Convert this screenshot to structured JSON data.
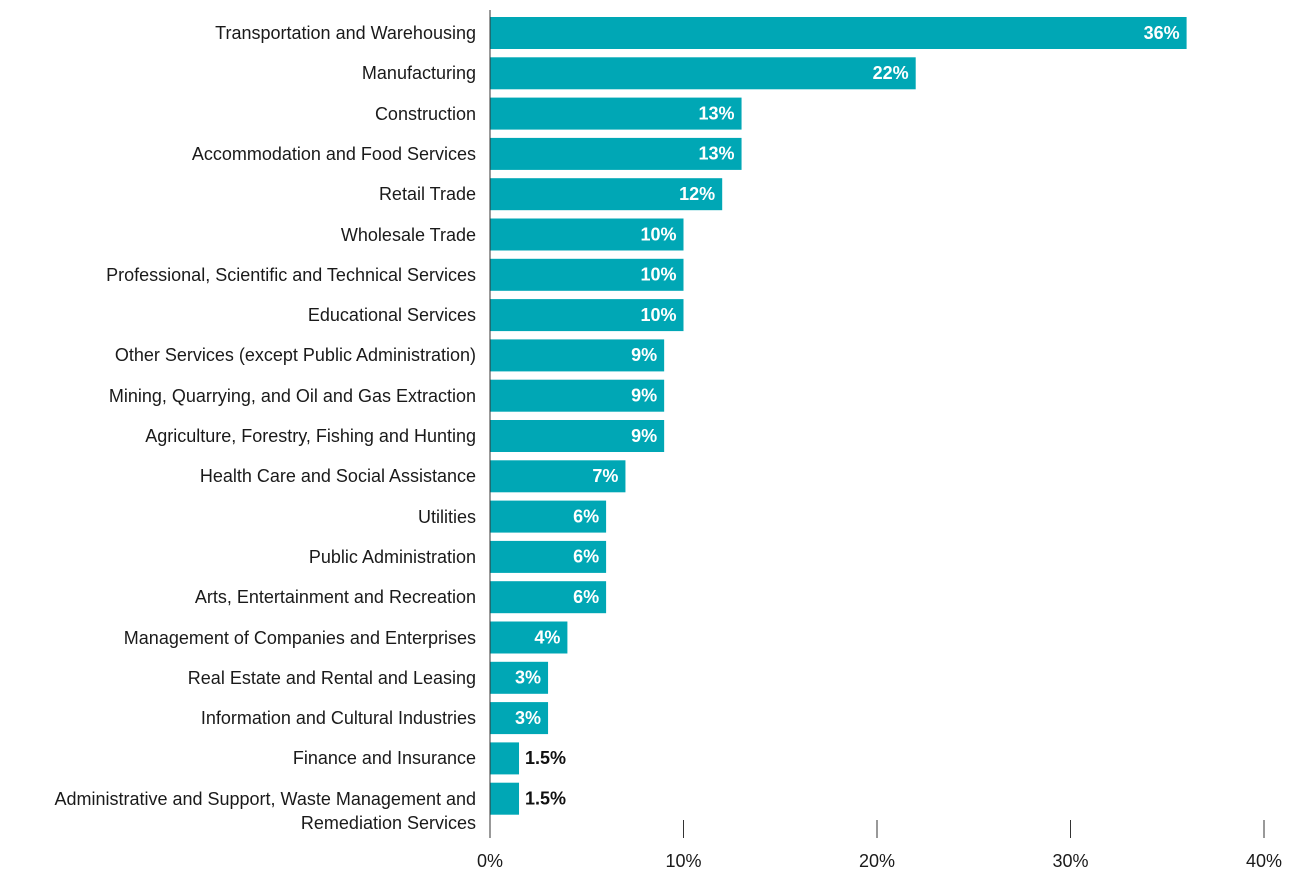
{
  "chart_data": {
    "type": "bar",
    "orientation": "horizontal",
    "categories": [
      "Transportation and Warehousing",
      "Manufacturing",
      "Construction",
      "Accommodation and Food Services",
      "Retail Trade",
      "Wholesale Trade",
      "Professional, Scientific and Technical Services",
      "Educational Services",
      "Other Services (except Public Administration)",
      "Mining, Quarrying, and Oil and Gas Extraction",
      "Agriculture, Forestry, Fishing and Hunting",
      "Health Care and Social Assistance",
      "Utilities",
      "Public Administration",
      "Arts, Entertainment and Recreation",
      "Management of Companies and Enterprises",
      "Real Estate and Rental and Leasing",
      "Information and Cultural Industries",
      "Finance and Insurance",
      "Administrative and Support, Waste Management and Remediation Services"
    ],
    "values": [
      36,
      22,
      13,
      13,
      12,
      10,
      10,
      10,
      9,
      9,
      9,
      7,
      6,
      6,
      6,
      4,
      3,
      3,
      1.5,
      1.5
    ],
    "value_labels": [
      "36%",
      "22%",
      "13%",
      "13%",
      "12%",
      "10%",
      "10%",
      "10%",
      "9%",
      "9%",
      "9%",
      "7%",
      "6%",
      "6%",
      "6%",
      "4%",
      "3%",
      "3%",
      "1.5%",
      "1.5%"
    ],
    "color": "#00a7b5",
    "xlim": [
      0,
      40
    ],
    "xticks": [
      {
        "value": 0,
        "label": "0%"
      },
      {
        "value": 10,
        "label": "10%"
      },
      {
        "value": 20,
        "label": "20%"
      },
      {
        "value": 30,
        "label": "30%"
      },
      {
        "value": 40,
        "label": "40%"
      }
    ]
  }
}
